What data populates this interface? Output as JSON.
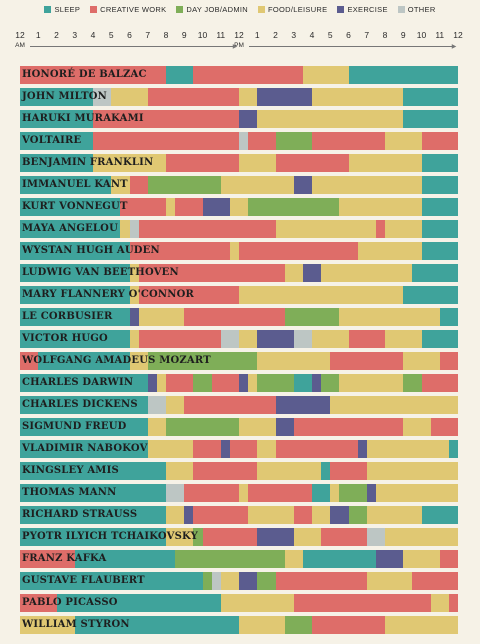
{
  "legend": [
    {
      "key": "sleep",
      "label": "SLEEP",
      "color": "#3fa39b"
    },
    {
      "key": "creative",
      "label": "CREATIVE WORK",
      "color": "#de6d69"
    },
    {
      "key": "dayjob",
      "label": "DAY JOB/ADMIN",
      "color": "#7fae58"
    },
    {
      "key": "food",
      "label": "FOOD/LEISURE",
      "color": "#e0c873"
    },
    {
      "key": "exercise",
      "label": "EXERCISE",
      "color": "#5b5c8f"
    },
    {
      "key": "other",
      "label": "OTHER",
      "color": "#bdc6c4"
    }
  ],
  "axis": {
    "ticks": [
      "12",
      "1",
      "2",
      "3",
      "4",
      "5",
      "6",
      "7",
      "8",
      "9",
      "10",
      "11",
      "12",
      "1",
      "2",
      "3",
      "4",
      "5",
      "6",
      "7",
      "8",
      "9",
      "10",
      "11",
      "12"
    ],
    "am_label": "AM",
    "pm_label": "PM"
  },
  "chart_data": {
    "type": "bar",
    "x_unit": "hour of day",
    "xlim": [
      0,
      24
    ],
    "people": [
      {
        "name": "HONORÉ DE BALZAC",
        "segments": [
          [
            "creative",
            0,
            8
          ],
          [
            "sleep",
            8,
            9.5
          ],
          [
            "creative",
            9.5,
            15.5
          ],
          [
            "food",
            15.5,
            18
          ],
          [
            "sleep",
            18,
            24
          ]
        ]
      },
      {
        "name": "JOHN MILTON",
        "segments": [
          [
            "sleep",
            0,
            4
          ],
          [
            "other",
            4,
            5
          ],
          [
            "food",
            5,
            7
          ],
          [
            "creative",
            7,
            12
          ],
          [
            "food",
            12,
            13
          ],
          [
            "exercise",
            13,
            16
          ],
          [
            "food",
            16,
            21
          ],
          [
            "sleep",
            21,
            24
          ]
        ]
      },
      {
        "name": "HARUKI MURAKAMI",
        "segments": [
          [
            "sleep",
            0,
            4
          ],
          [
            "creative",
            4,
            12
          ],
          [
            "exercise",
            12,
            13
          ],
          [
            "food",
            13,
            21
          ],
          [
            "sleep",
            21,
            24
          ]
        ]
      },
      {
        "name": "VOLTAIRE",
        "segments": [
          [
            "sleep",
            0,
            4
          ],
          [
            "creative",
            4,
            12
          ],
          [
            "other",
            12,
            12.5
          ],
          [
            "creative",
            12.5,
            14
          ],
          [
            "dayjob",
            14,
            16
          ],
          [
            "creative",
            16,
            20
          ],
          [
            "food",
            20,
            22
          ],
          [
            "creative",
            22,
            24
          ]
        ]
      },
      {
        "name": "BENJAMIN FRANKLIN",
        "segments": [
          [
            "sleep",
            0,
            4
          ],
          [
            "food",
            4,
            8
          ],
          [
            "creative",
            8,
            12
          ],
          [
            "food",
            12,
            14
          ],
          [
            "creative",
            14,
            18
          ],
          [
            "food",
            18,
            22
          ],
          [
            "sleep",
            22,
            24
          ]
        ]
      },
      {
        "name": "IMMANUEL KANT",
        "segments": [
          [
            "sleep",
            0,
            5
          ],
          [
            "food",
            5,
            6
          ],
          [
            "creative",
            6,
            7
          ],
          [
            "dayjob",
            7,
            11
          ],
          [
            "food",
            11,
            15
          ],
          [
            "exercise",
            15,
            16
          ],
          [
            "food",
            16,
            22
          ],
          [
            "sleep",
            22,
            24
          ]
        ]
      },
      {
        "name": "KURT VONNEGUT",
        "segments": [
          [
            "sleep",
            0,
            5.5
          ],
          [
            "creative",
            5.5,
            8
          ],
          [
            "food",
            8,
            8.5
          ],
          [
            "creative",
            8.5,
            10
          ],
          [
            "exercise",
            10,
            11.5
          ],
          [
            "food",
            11.5,
            12.5
          ],
          [
            "dayjob",
            12.5,
            17.5
          ],
          [
            "food",
            17.5,
            22
          ],
          [
            "sleep",
            22,
            24
          ]
        ]
      },
      {
        "name": "MAYA ANGELOU",
        "segments": [
          [
            "sleep",
            0,
            5.5
          ],
          [
            "food",
            5.5,
            6
          ],
          [
            "other",
            6,
            6.5
          ],
          [
            "creative",
            6.5,
            14
          ],
          [
            "food",
            14,
            19.5
          ],
          [
            "creative",
            19.5,
            20
          ],
          [
            "food",
            20,
            22
          ],
          [
            "sleep",
            22,
            24
          ]
        ]
      },
      {
        "name": "WYSTAN HUGH AUDEN",
        "segments": [
          [
            "sleep",
            0,
            6
          ],
          [
            "creative",
            6,
            11.5
          ],
          [
            "food",
            11.5,
            12
          ],
          [
            "creative",
            12,
            18.5
          ],
          [
            "food",
            18.5,
            22
          ],
          [
            "sleep",
            22,
            24
          ]
        ]
      },
      {
        "name": "LUDWIG VAN BEETHOVEN",
        "segments": [
          [
            "sleep",
            0,
            6
          ],
          [
            "food",
            6,
            6.5
          ],
          [
            "creative",
            6.5,
            14.5
          ],
          [
            "food",
            14.5,
            15.5
          ],
          [
            "exercise",
            15.5,
            16.5
          ],
          [
            "food",
            16.5,
            21.5
          ],
          [
            "sleep",
            21.5,
            24
          ]
        ]
      },
      {
        "name": "MARY FLANNERY O'CONNOR",
        "segments": [
          [
            "sleep",
            0,
            6
          ],
          [
            "food",
            6,
            6.5
          ],
          [
            "creative",
            6.5,
            12
          ],
          [
            "food",
            12,
            21
          ],
          [
            "sleep",
            21,
            24
          ]
        ]
      },
      {
        "name": "LE CORBUSIER",
        "segments": [
          [
            "sleep",
            0,
            6
          ],
          [
            "exercise",
            6,
            6.5
          ],
          [
            "food",
            6.5,
            9
          ],
          [
            "creative",
            9,
            14.5
          ],
          [
            "dayjob",
            14.5,
            17.5
          ],
          [
            "food",
            17.5,
            23
          ],
          [
            "sleep",
            23,
            24
          ]
        ]
      },
      {
        "name": "VICTOR HUGO",
        "segments": [
          [
            "sleep",
            0,
            6
          ],
          [
            "food",
            6,
            6.5
          ],
          [
            "creative",
            6.5,
            11
          ],
          [
            "other",
            11,
            12
          ],
          [
            "food",
            12,
            13
          ],
          [
            "exercise",
            13,
            15
          ],
          [
            "other",
            15,
            16
          ],
          [
            "food",
            16,
            18
          ],
          [
            "creative",
            18,
            20
          ],
          [
            "food",
            20,
            22
          ],
          [
            "sleep",
            22,
            24
          ]
        ]
      },
      {
        "name": "WOLFGANG AMADEUS MOZART",
        "segments": [
          [
            "creative",
            0,
            1
          ],
          [
            "sleep",
            1,
            6
          ],
          [
            "food",
            6,
            7
          ],
          [
            "dayjob",
            7,
            13
          ],
          [
            "food",
            13,
            17
          ],
          [
            "creative",
            17,
            21
          ],
          [
            "food",
            21,
            23
          ],
          [
            "creative",
            23,
            24
          ]
        ]
      },
      {
        "name": "CHARLES DARWIN",
        "segments": [
          [
            "sleep",
            0,
            7
          ],
          [
            "exercise",
            7,
            7.5
          ],
          [
            "food",
            7.5,
            8
          ],
          [
            "creative",
            8,
            9.5
          ],
          [
            "dayjob",
            9.5,
            10.5
          ],
          [
            "creative",
            10.5,
            12
          ],
          [
            "exercise",
            12,
            12.5
          ],
          [
            "food",
            12.5,
            13
          ],
          [
            "dayjob",
            13,
            15
          ],
          [
            "sleep",
            15,
            16
          ],
          [
            "exercise",
            16,
            16.5
          ],
          [
            "dayjob",
            16.5,
            17.5
          ],
          [
            "food",
            17.5,
            21
          ],
          [
            "dayjob",
            21,
            22
          ],
          [
            "creative",
            22,
            24
          ]
        ]
      },
      {
        "name": "CHARLES DICKENS",
        "segments": [
          [
            "sleep",
            0,
            7
          ],
          [
            "other",
            7,
            8
          ],
          [
            "food",
            8,
            9
          ],
          [
            "creative",
            9,
            14
          ],
          [
            "exercise",
            14,
            17
          ],
          [
            "food",
            17,
            24
          ]
        ]
      },
      {
        "name": "SIGMUND FREUD",
        "segments": [
          [
            "sleep",
            0,
            7
          ],
          [
            "food",
            7,
            8
          ],
          [
            "dayjob",
            8,
            12
          ],
          [
            "food",
            12,
            14
          ],
          [
            "exercise",
            14,
            15
          ],
          [
            "creative",
            15,
            21
          ],
          [
            "food",
            21,
            22.5
          ],
          [
            "creative",
            22.5,
            24
          ]
        ]
      },
      {
        "name": "VLADIMIR NABOKOV",
        "segments": [
          [
            "sleep",
            0,
            7
          ],
          [
            "food",
            7,
            9.5
          ],
          [
            "creative",
            9.5,
            11
          ],
          [
            "exercise",
            11,
            11.5
          ],
          [
            "creative",
            11.5,
            13
          ],
          [
            "food",
            13,
            14
          ],
          [
            "creative",
            14,
            18.5
          ],
          [
            "exercise",
            18.5,
            19
          ],
          [
            "food",
            19,
            23.5
          ],
          [
            "sleep",
            23.5,
            24
          ]
        ]
      },
      {
        "name": "KINGSLEY AMIS",
        "segments": [
          [
            "sleep",
            0,
            8
          ],
          [
            "food",
            8,
            9.5
          ],
          [
            "creative",
            9.5,
            13
          ],
          [
            "food",
            13,
            16.5
          ],
          [
            "sleep",
            16.5,
            17
          ],
          [
            "creative",
            17,
            19
          ],
          [
            "food",
            19,
            24
          ]
        ]
      },
      {
        "name": "THOMAS MANN",
        "segments": [
          [
            "sleep",
            0,
            8
          ],
          [
            "other",
            8,
            9
          ],
          [
            "creative",
            9,
            12
          ],
          [
            "food",
            12,
            12.5
          ],
          [
            "creative",
            12.5,
            16
          ],
          [
            "sleep",
            16,
            17
          ],
          [
            "food",
            17,
            17.5
          ],
          [
            "dayjob",
            17.5,
            19
          ],
          [
            "exercise",
            19,
            19.5
          ],
          [
            "food",
            19.5,
            24
          ]
        ]
      },
      {
        "name": "RICHARD STRAUSS",
        "segments": [
          [
            "sleep",
            0,
            8
          ],
          [
            "food",
            8,
            9
          ],
          [
            "exercise",
            9,
            9.5
          ],
          [
            "creative",
            9.5,
            12.5
          ],
          [
            "food",
            12.5,
            15
          ],
          [
            "creative",
            15,
            16
          ],
          [
            "food",
            16,
            17
          ],
          [
            "exercise",
            17,
            18
          ],
          [
            "dayjob",
            18,
            19
          ],
          [
            "food",
            19,
            22
          ],
          [
            "sleep",
            22,
            24
          ]
        ]
      },
      {
        "name": "PYOTR ILYICH TCHAIKOVSKY",
        "segments": [
          [
            "sleep",
            0,
            8
          ],
          [
            "food",
            8,
            9.5
          ],
          [
            "dayjob",
            9.5,
            10
          ],
          [
            "creative",
            10,
            13
          ],
          [
            "exercise",
            13,
            15
          ],
          [
            "food",
            15,
            16.5
          ],
          [
            "creative",
            16.5,
            19
          ],
          [
            "other",
            19,
            20
          ],
          [
            "food",
            20,
            24
          ]
        ]
      },
      {
        "name": "FRANZ KAFKA",
        "segments": [
          [
            "creative",
            0,
            3
          ],
          [
            "sleep",
            3,
            8.5
          ],
          [
            "dayjob",
            8.5,
            14.5
          ],
          [
            "food",
            14.5,
            15.5
          ],
          [
            "sleep",
            15.5,
            19.5
          ],
          [
            "exercise",
            19.5,
            21
          ],
          [
            "food",
            21,
            23
          ],
          [
            "creative",
            23,
            24
          ]
        ]
      },
      {
        "name": "GUSTAVE FLAUBERT",
        "segments": [
          [
            "sleep",
            0,
            10
          ],
          [
            "dayjob",
            10,
            10.5
          ],
          [
            "other",
            10.5,
            11
          ],
          [
            "food",
            11,
            12
          ],
          [
            "exercise",
            12,
            13
          ],
          [
            "dayjob",
            13,
            14
          ],
          [
            "creative",
            14,
            19
          ],
          [
            "food",
            19,
            21.5
          ],
          [
            "creative",
            21.5,
            24
          ]
        ]
      },
      {
        "name": "PABLO PICASSO",
        "segments": [
          [
            "creative",
            0,
            2
          ],
          [
            "sleep",
            2,
            11
          ],
          [
            "food",
            11,
            15
          ],
          [
            "creative",
            15,
            22.5
          ],
          [
            "food",
            22.5,
            23.5
          ],
          [
            "creative",
            23.5,
            24
          ]
        ]
      },
      {
        "name": "WILLIAM STYRON",
        "segments": [
          [
            "food",
            0,
            3
          ],
          [
            "sleep",
            3,
            12
          ],
          [
            "food",
            12,
            14.5
          ],
          [
            "dayjob",
            14.5,
            16
          ],
          [
            "creative",
            16,
            20
          ],
          [
            "food",
            20,
            24
          ]
        ]
      }
    ]
  }
}
